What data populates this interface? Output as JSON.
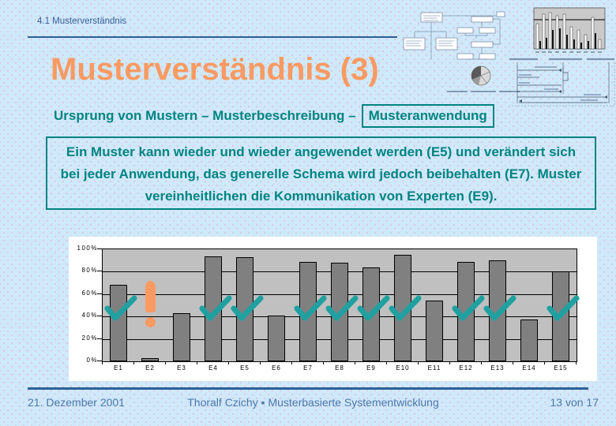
{
  "slide": {
    "header": "4.1 Musterverständnis",
    "title": "Musterverständnis (3)",
    "subtitle_prefix": "Ursprung von Mustern – Musterbeschreibung –",
    "subtitle_boxed": "Musteranwendung",
    "body_text": "Ein Muster kann wieder und wieder angewendet werden (E5) und verändert sich bei jeder Anwendung, das generelle Schema wird jedoch beibehalten (E7). Muster vereinheitlichen die Kommunikation von Experten (E9).",
    "footer": {
      "date": "21. Dezember 2001",
      "center": "Thoralf Czichy ▪ Musterbasierte Systementwicklung",
      "page": "13 von 17"
    }
  },
  "colors": {
    "background": "#cfe9fb",
    "dot_pattern": "#dcc3d8",
    "accent_orange": "#f99a62",
    "accent_teal": "#008480",
    "check_teal": "#20a0a0",
    "header_footer_blue": "#4d77ad",
    "divider_blue": "#2d5f94",
    "bar_gray": "#808080",
    "plot_background": "#c0c0c0",
    "chart_panel": "#ffffff"
  },
  "chart_data": {
    "type": "bar",
    "title": "",
    "xlabel": "",
    "ylabel": "",
    "categories": [
      "E1",
      "E2",
      "E3",
      "E4",
      "E5",
      "E6",
      "E7",
      "E8",
      "E9",
      "E10",
      "E11",
      "E12",
      "E13",
      "E14",
      "E15"
    ],
    "values": [
      68,
      3,
      43,
      94,
      93,
      41,
      89,
      88,
      84,
      95,
      54,
      89,
      90,
      37,
      80
    ],
    "ylim": [
      0,
      100
    ],
    "ytick_labels": [
      "0%",
      "20%",
      "40%",
      "60%",
      "80%",
      "100%"
    ],
    "grid": true,
    "legend": false,
    "annotations": {
      "check_marks": [
        "E1",
        "E4",
        "E5",
        "E7",
        "E8",
        "E9",
        "E10",
        "E12",
        "E13",
        "E15"
      ],
      "exclamation": [
        "E2"
      ]
    }
  }
}
